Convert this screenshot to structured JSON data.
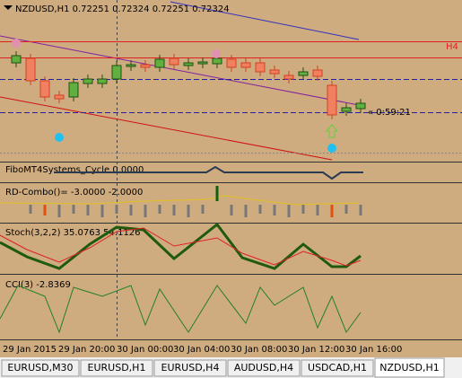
{
  "header": {
    "title": "NZDUSD,H1  0.72251 0.72324 0.72251 0.72324"
  },
  "main": {
    "level_label": "H4",
    "timer": "« 0:59:21"
  },
  "indicators": [
    "FiboMT4Systems_Cycle 0.0000",
    "RD-Combo()= -3.0000 -2.0000",
    "Stoch(3,2,2) 35.0763 54.1126",
    "CCI(3) -2.8369"
  ],
  "time_axis": [
    "29 Jan 2015",
    "29 Jan 20:00",
    "30 Jan 00:00",
    "30 Jan 04:00",
    "30 Jan 08:00",
    "30 Jan 12:00",
    "30 Jan 16:00"
  ],
  "tabs": [
    "EURUSD,M30",
    "EURUSD,H1",
    "EURUSD,H4",
    "AUDUSD,H4",
    "USDCAD,H1",
    "NZDUSD,H1"
  ]
}
